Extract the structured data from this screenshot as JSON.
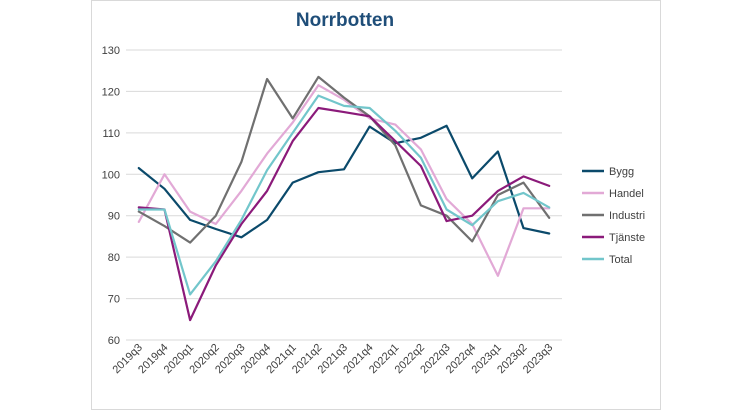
{
  "chart_data": {
    "type": "line",
    "title": "Norrbotten",
    "title_color": "#1f4e79",
    "xlabel": "",
    "ylabel": "",
    "ylim": [
      60,
      130
    ],
    "yticks": [
      60,
      70,
      80,
      90,
      100,
      110,
      120,
      130
    ],
    "grid": "horizontal",
    "legend_position": "right",
    "categories": [
      "2019q3",
      "2019q4",
      "2020q1",
      "2020q2",
      "2020q3",
      "2020q4",
      "2021q1",
      "2021q2",
      "2021q3",
      "2021q4",
      "2022q1",
      "2022q2",
      "2022q3",
      "2022q4",
      "2023q1",
      "2023q2",
      "2023q3"
    ],
    "series": [
      {
        "name": "Bygg",
        "color": "#0b4a6b",
        "values": [
          101.5,
          96.5,
          89,
          86.8,
          84.8,
          89,
          98,
          100.5,
          101.2,
          111.5,
          107.5,
          108.8,
          111.7,
          99,
          105.5,
          87,
          85.7
        ]
      },
      {
        "name": "Handel",
        "color": "#e2a9d6",
        "values": [
          88.5,
          100,
          91,
          88,
          96,
          105,
          112.5,
          121.5,
          118,
          113.5,
          112,
          106,
          94,
          88,
          75.5,
          91.8,
          91.8
        ]
      },
      {
        "name": "Industri",
        "color": "#707070",
        "values": [
          91,
          87.5,
          83.5,
          90,
          103,
          123,
          113.5,
          123.5,
          118.5,
          114,
          107,
          92.5,
          90,
          83.8,
          95,
          98,
          89.5
        ]
      },
      {
        "name": "Tjänste",
        "color": "#8b1a7a",
        "values": [
          92,
          91.5,
          64.8,
          78,
          88,
          96,
          108,
          116,
          115,
          114,
          108,
          102,
          88.7,
          90,
          96,
          99.5,
          97.2
        ]
      },
      {
        "name": "Total",
        "color": "#72c6cb",
        "values": [
          91.5,
          91.5,
          71,
          79,
          89,
          101,
          110,
          119,
          116.5,
          116,
          110.5,
          104,
          91.5,
          87.7,
          93.5,
          95.5,
          92
        ]
      }
    ]
  }
}
